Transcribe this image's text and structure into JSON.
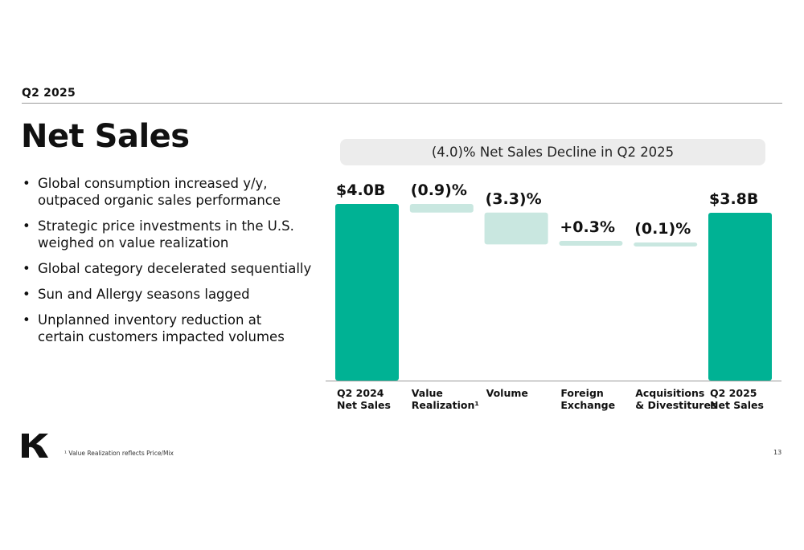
{
  "slide": {
    "eyebrow": "Q2 2025",
    "title": "Net Sales",
    "bullets": [
      "Global consumption increased y/y, outpaced organic sales performance",
      "Strategic price investments in the U.S. weighed on value realization",
      "Global category decelerated sequentially",
      "Sun and Allergy seasons lagged",
      "Unplanned inventory reduction at certain customers impacted volumes"
    ],
    "banner": "(4.0)% Net Sales Decline in Q2 2025",
    "footnote": "¹ Value Realization reflects Price/Mix",
    "page_number": "13"
  },
  "chart_data": {
    "type": "bar",
    "subtype": "waterfall",
    "categories": [
      [
        "Q2 2024",
        "Net Sales"
      ],
      [
        "Value",
        "Realization¹"
      ],
      [
        "Volume"
      ],
      [
        "Foreign",
        "Exchange"
      ],
      [
        "Acquisitions",
        "& Divestitures"
      ],
      [
        "Q2 2025",
        "Net Sales"
      ]
    ],
    "value_labels": [
      "$4.0B",
      "(0.9)%",
      "(3.3)%",
      "+0.3%",
      "(0.1)%",
      "$3.8B"
    ],
    "kinds": [
      "total",
      "delta",
      "delta",
      "delta",
      "delta",
      "total"
    ],
    "values": [
      4.0,
      -0.9,
      -3.3,
      0.3,
      -0.1,
      3.8
    ],
    "colors": {
      "total": "#00b294",
      "delta": "#c9e7e0",
      "baseline": "#999999"
    }
  }
}
